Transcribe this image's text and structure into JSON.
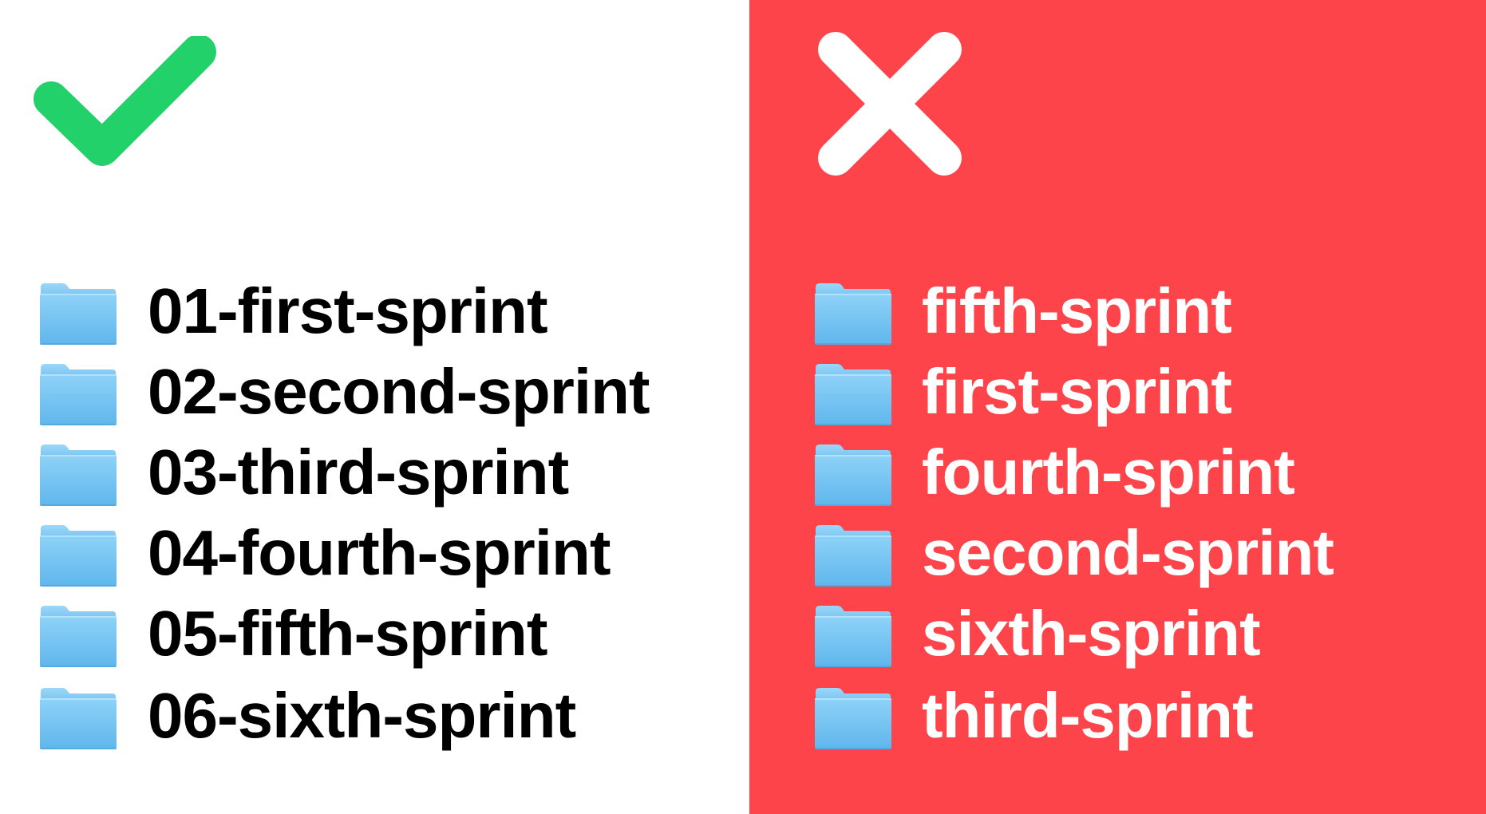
{
  "colors": {
    "good_background": "#ffffff",
    "bad_background": "#fc444a",
    "check_mark": "#22d16a",
    "x_mark": "#ffffff",
    "good_text": "#000000",
    "bad_text": "#ffffff",
    "folder_top": "#8ed2f8",
    "folder_bottom": "#5fb6ec"
  },
  "good_panel": {
    "mark_icon": "check-mark-icon",
    "folder_icon": "folder-icon",
    "folders": [
      {
        "name": "01-first-sprint"
      },
      {
        "name": "02-second-sprint"
      },
      {
        "name": "03-third-sprint"
      },
      {
        "name": "04-fourth-sprint"
      },
      {
        "name": "05-fifth-sprint"
      },
      {
        "name": "06-sixth-sprint"
      }
    ]
  },
  "bad_panel": {
    "mark_icon": "x-mark-icon",
    "folder_icon": "folder-icon",
    "folders": [
      {
        "name": "fifth-sprint"
      },
      {
        "name": "first-sprint"
      },
      {
        "name": "fourth-sprint"
      },
      {
        "name": "second-sprint"
      },
      {
        "name": "sixth-sprint"
      },
      {
        "name": "third-sprint"
      }
    ]
  }
}
